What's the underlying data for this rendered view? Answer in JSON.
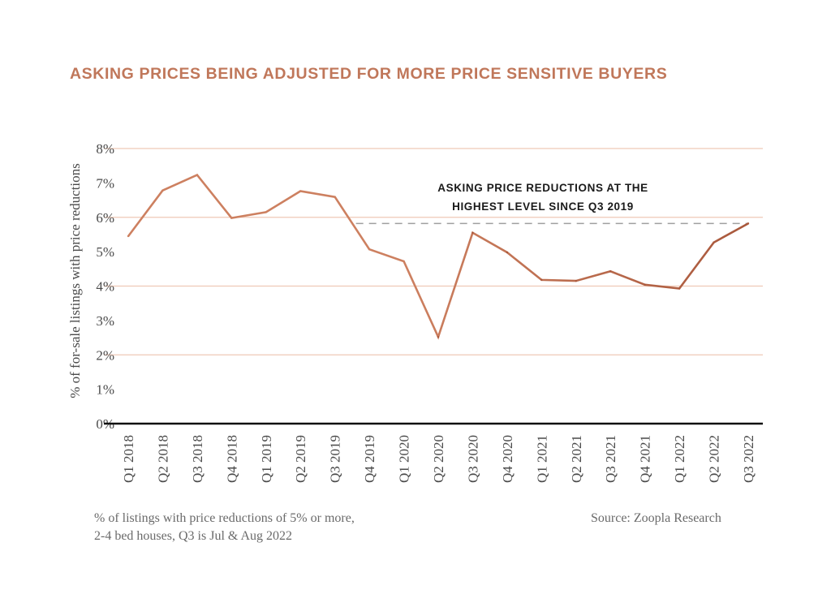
{
  "chart_data": {
    "type": "line",
    "title": "ASKING PRICES BEING ADJUSTED FOR MORE PRICE SENSITIVE BUYERS",
    "xlabel": "",
    "ylabel": "% of for-sale listings with price reductions",
    "ylim": [
      0,
      8
    ],
    "yticks": [
      "0%",
      "1%",
      "2%",
      "3%",
      "4%",
      "5%",
      "6%",
      "7%",
      "8%"
    ],
    "gridlines": [
      2,
      4,
      6,
      8
    ],
    "categories": [
      "Q1 2018",
      "Q2 2018",
      "Q3 2018",
      "Q4 2018",
      "Q1 2019",
      "Q2 2019",
      "Q3 2019",
      "Q4 2019",
      "Q1 2020",
      "Q2 2020",
      "Q3 2020",
      "Q4 2020",
      "Q1 2021",
      "Q2 2021",
      "Q3 2021",
      "Q4 2021",
      "Q1 2022",
      "Q2 2022",
      "Q3 2022"
    ],
    "series": [
      {
        "name": "% of listings with price reductions",
        "values": [
          5.45,
          6.78,
          7.23,
          5.98,
          6.15,
          6.76,
          6.59,
          5.07,
          4.72,
          2.52,
          5.55,
          4.98,
          4.18,
          4.15,
          4.43,
          4.04,
          3.93,
          5.27,
          5.82
        ]
      }
    ],
    "reference_line": {
      "value": 5.82,
      "from": "Q3 2019",
      "to": "Q3 2022",
      "style": "dashed"
    },
    "annotation": [
      "ASKING PRICE REDUCTIONS AT THE",
      "HIGHEST LEVEL SINCE Q3 2019"
    ],
    "colors": {
      "title": "#c0775a",
      "line_early": "#cd8060",
      "line_late": "#a9583c",
      "grid": "#efc9b6",
      "axis": "#111111",
      "reference": "#a0a0a0"
    }
  },
  "footer": {
    "note_line1": "% of listings with price reductions of 5% or more,",
    "note_line2": "2-4 bed houses, Q3 is Jul & Aug 2022",
    "source": "Source: Zoopla Research"
  }
}
